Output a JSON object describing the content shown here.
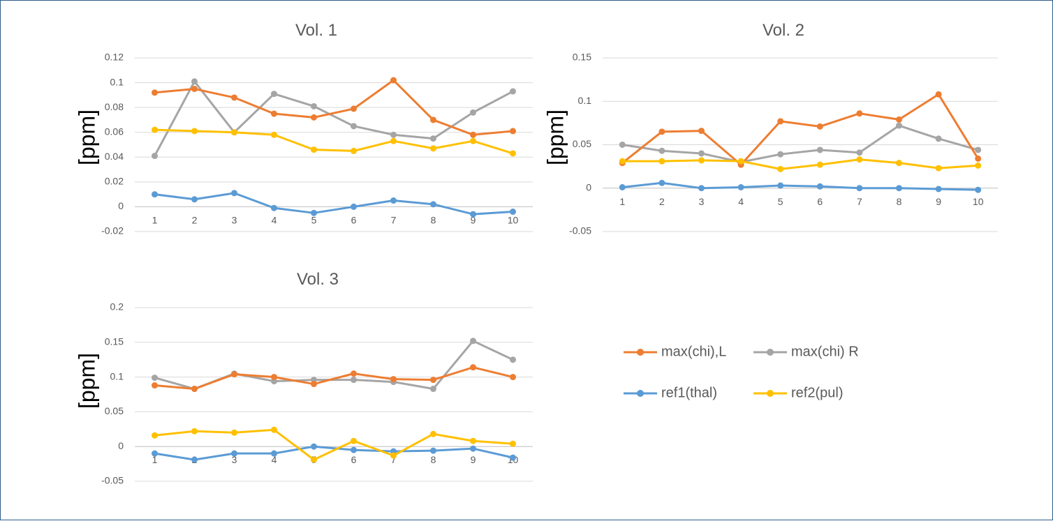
{
  "chart_data": [
    {
      "type": "line",
      "title": "Vol. 1",
      "ylabel": "[ppm]",
      "xlabel": "",
      "ylim": [
        -0.02,
        0.12
      ],
      "y_ticks": [
        -0.02,
        0,
        0.02,
        0.04,
        0.06,
        0.08,
        0.1,
        0.12
      ],
      "y_tick_labels": [
        "-0.02",
        "0",
        "0.02",
        "0.04",
        "0.06",
        "0.08",
        "0.1",
        "0.12"
      ],
      "categories": [
        "1",
        "2",
        "3",
        "4",
        "5",
        "6",
        "7",
        "8",
        "9",
        "10"
      ],
      "grid": true,
      "series": [
        {
          "name": "max(chi),L",
          "values": [
            0.092,
            0.095,
            0.088,
            0.075,
            0.072,
            0.079,
            0.102,
            0.07,
            0.058,
            0.061
          ]
        },
        {
          "name": "max(chi) R",
          "values": [
            0.041,
            0.101,
            0.06,
            0.091,
            0.081,
            0.065,
            0.058,
            0.055,
            0.076,
            0.093
          ]
        },
        {
          "name": "ref1(thal)",
          "values": [
            0.01,
            0.006,
            0.011,
            -0.001,
            -0.005,
            0.0,
            0.005,
            0.002,
            -0.006,
            -0.004
          ]
        },
        {
          "name": "ref2(pul)",
          "values": [
            0.062,
            0.061,
            0.06,
            0.058,
            0.046,
            0.045,
            0.053,
            0.047,
            0.053,
            0.043
          ]
        }
      ]
    },
    {
      "type": "line",
      "title": "Vol. 2",
      "ylabel": "[ppm]",
      "xlabel": "",
      "ylim": [
        -0.05,
        0.15
      ],
      "y_ticks": [
        -0.05,
        0,
        0.05,
        0.1,
        0.15
      ],
      "y_tick_labels": [
        "-0.05",
        "0",
        "0.05",
        "0.1",
        "0.15"
      ],
      "categories": [
        "1",
        "2",
        "3",
        "4",
        "5",
        "6",
        "7",
        "8",
        "9",
        "10"
      ],
      "grid": true,
      "series": [
        {
          "name": "max(chi),L",
          "values": [
            0.029,
            0.065,
            0.066,
            0.027,
            0.077,
            0.071,
            0.086,
            0.079,
            0.108,
            0.034
          ]
        },
        {
          "name": "max(chi) R",
          "values": [
            0.05,
            0.043,
            0.04,
            0.03,
            0.039,
            0.044,
            0.041,
            0.072,
            0.057,
            0.044
          ]
        },
        {
          "name": "ref1(thal)",
          "values": [
            0.001,
            0.006,
            0.0,
            0.001,
            0.003,
            0.002,
            0.0,
            0.0,
            -0.001,
            -0.002
          ]
        },
        {
          "name": "ref2(pul)",
          "values": [
            0.031,
            0.031,
            0.032,
            0.031,
            0.022,
            0.027,
            0.033,
            0.029,
            0.023,
            0.026
          ]
        }
      ]
    },
    {
      "type": "line",
      "title": "Vol. 3",
      "ylabel": "[ppm]",
      "xlabel": "",
      "ylim": [
        -0.05,
        0.2
      ],
      "y_ticks": [
        -0.05,
        0,
        0.05,
        0.1,
        0.15,
        0.2
      ],
      "y_tick_labels": [
        "-0.05",
        "0",
        "0.05",
        "0.1",
        "0.15",
        "0.2"
      ],
      "categories": [
        "1",
        "2",
        "3",
        "4",
        "5",
        "6",
        "7",
        "8",
        "9",
        "10"
      ],
      "grid": true,
      "series": [
        {
          "name": "max(chi),L",
          "values": [
            0.088,
            0.083,
            0.104,
            0.1,
            0.09,
            0.105,
            0.097,
            0.096,
            0.114,
            0.1
          ]
        },
        {
          "name": "max(chi) R",
          "values": [
            0.099,
            0.083,
            0.105,
            0.094,
            0.096,
            0.096,
            0.093,
            0.083,
            0.152,
            0.125
          ]
        },
        {
          "name": "ref1(thal)",
          "values": [
            -0.01,
            -0.019,
            -0.01,
            -0.01,
            0.0,
            -0.005,
            -0.007,
            -0.006,
            -0.003,
            -0.016
          ]
        },
        {
          "name": "ref2(pul)",
          "values": [
            0.016,
            0.022,
            0.02,
            0.024,
            -0.019,
            0.008,
            -0.013,
            0.018,
            0.008,
            0.004
          ]
        }
      ]
    }
  ],
  "legend": {
    "position": "right",
    "items": [
      {
        "name": "max(chi),L",
        "color": "#ed7d31"
      },
      {
        "name": "max(chi) R",
        "color": "#a5a5a5"
      },
      {
        "name": "ref1(thal)",
        "color": "#5b9bd5"
      },
      {
        "name": "ref2(pul)",
        "color": "#ffc000"
      }
    ]
  },
  "colors": {
    "max(chi),L": "#ed7d31",
    "max(chi) R": "#a5a5a5",
    "ref1(thal)": "#5b9bd5",
    "ref2(pul)": "#ffc000",
    "grid": "#d9d9d9",
    "axis": "#bfbfbf",
    "text": "#595959"
  }
}
